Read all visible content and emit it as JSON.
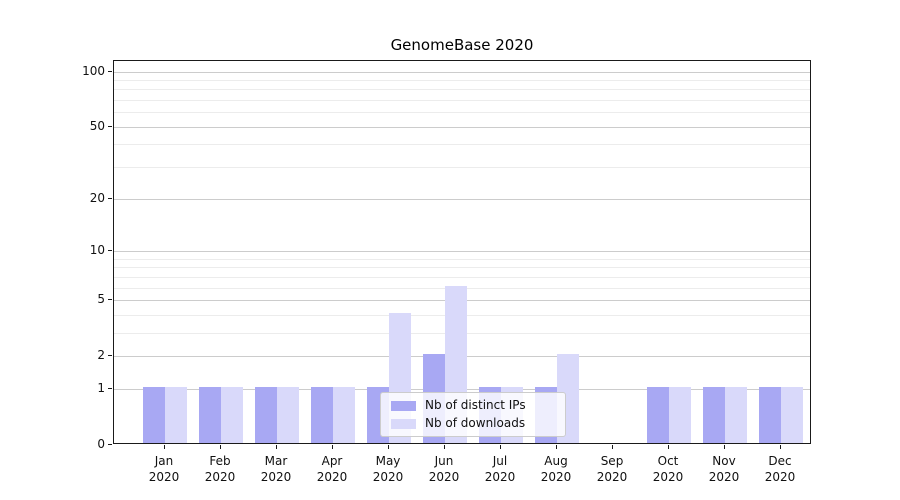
{
  "chart_data": {
    "type": "bar",
    "title": "GenomeBase 2020",
    "categories": [
      "Jan 2020",
      "Feb 2020",
      "Mar 2020",
      "Apr 2020",
      "May 2020",
      "Jun 2020",
      "Jul 2020",
      "Aug 2020",
      "Sep 2020",
      "Oct 2020",
      "Nov 2020",
      "Dec 2020"
    ],
    "x_tick_months": [
      "Jan",
      "Feb",
      "Mar",
      "Apr",
      "May",
      "Jun",
      "Jul",
      "Aug",
      "Sep",
      "Oct",
      "Nov",
      "Dec"
    ],
    "x_tick_year": "2020",
    "series": [
      {
        "name": "Nb of distinct IPs",
        "color": "#a8a8f3",
        "values": [
          1,
          1,
          1,
          1,
          1,
          2,
          1,
          1,
          0,
          1,
          1,
          1
        ]
      },
      {
        "name": "Nb of downloads",
        "color": "#d9d9fa",
        "values": [
          1,
          1,
          1,
          1,
          4,
          6,
          1,
          2,
          0,
          1,
          1,
          1
        ]
      }
    ],
    "xlabel": "",
    "ylabel": "",
    "yscale": "log1p",
    "ylim": [
      0,
      114
    ],
    "yticks_major": [
      0,
      1,
      2,
      5,
      10,
      20,
      50,
      100
    ],
    "yticks_minor": [
      3,
      4,
      6,
      7,
      8,
      9,
      30,
      40,
      60,
      70,
      80,
      90
    ],
    "grid": "horizontal major and minor gridlines",
    "legend_position": "inside bottom-center"
  },
  "colors": {
    "grid_major": "#cccccc",
    "grid_minor": "#ececec",
    "spine": "#1a1a1a",
    "text": "#111111"
  }
}
